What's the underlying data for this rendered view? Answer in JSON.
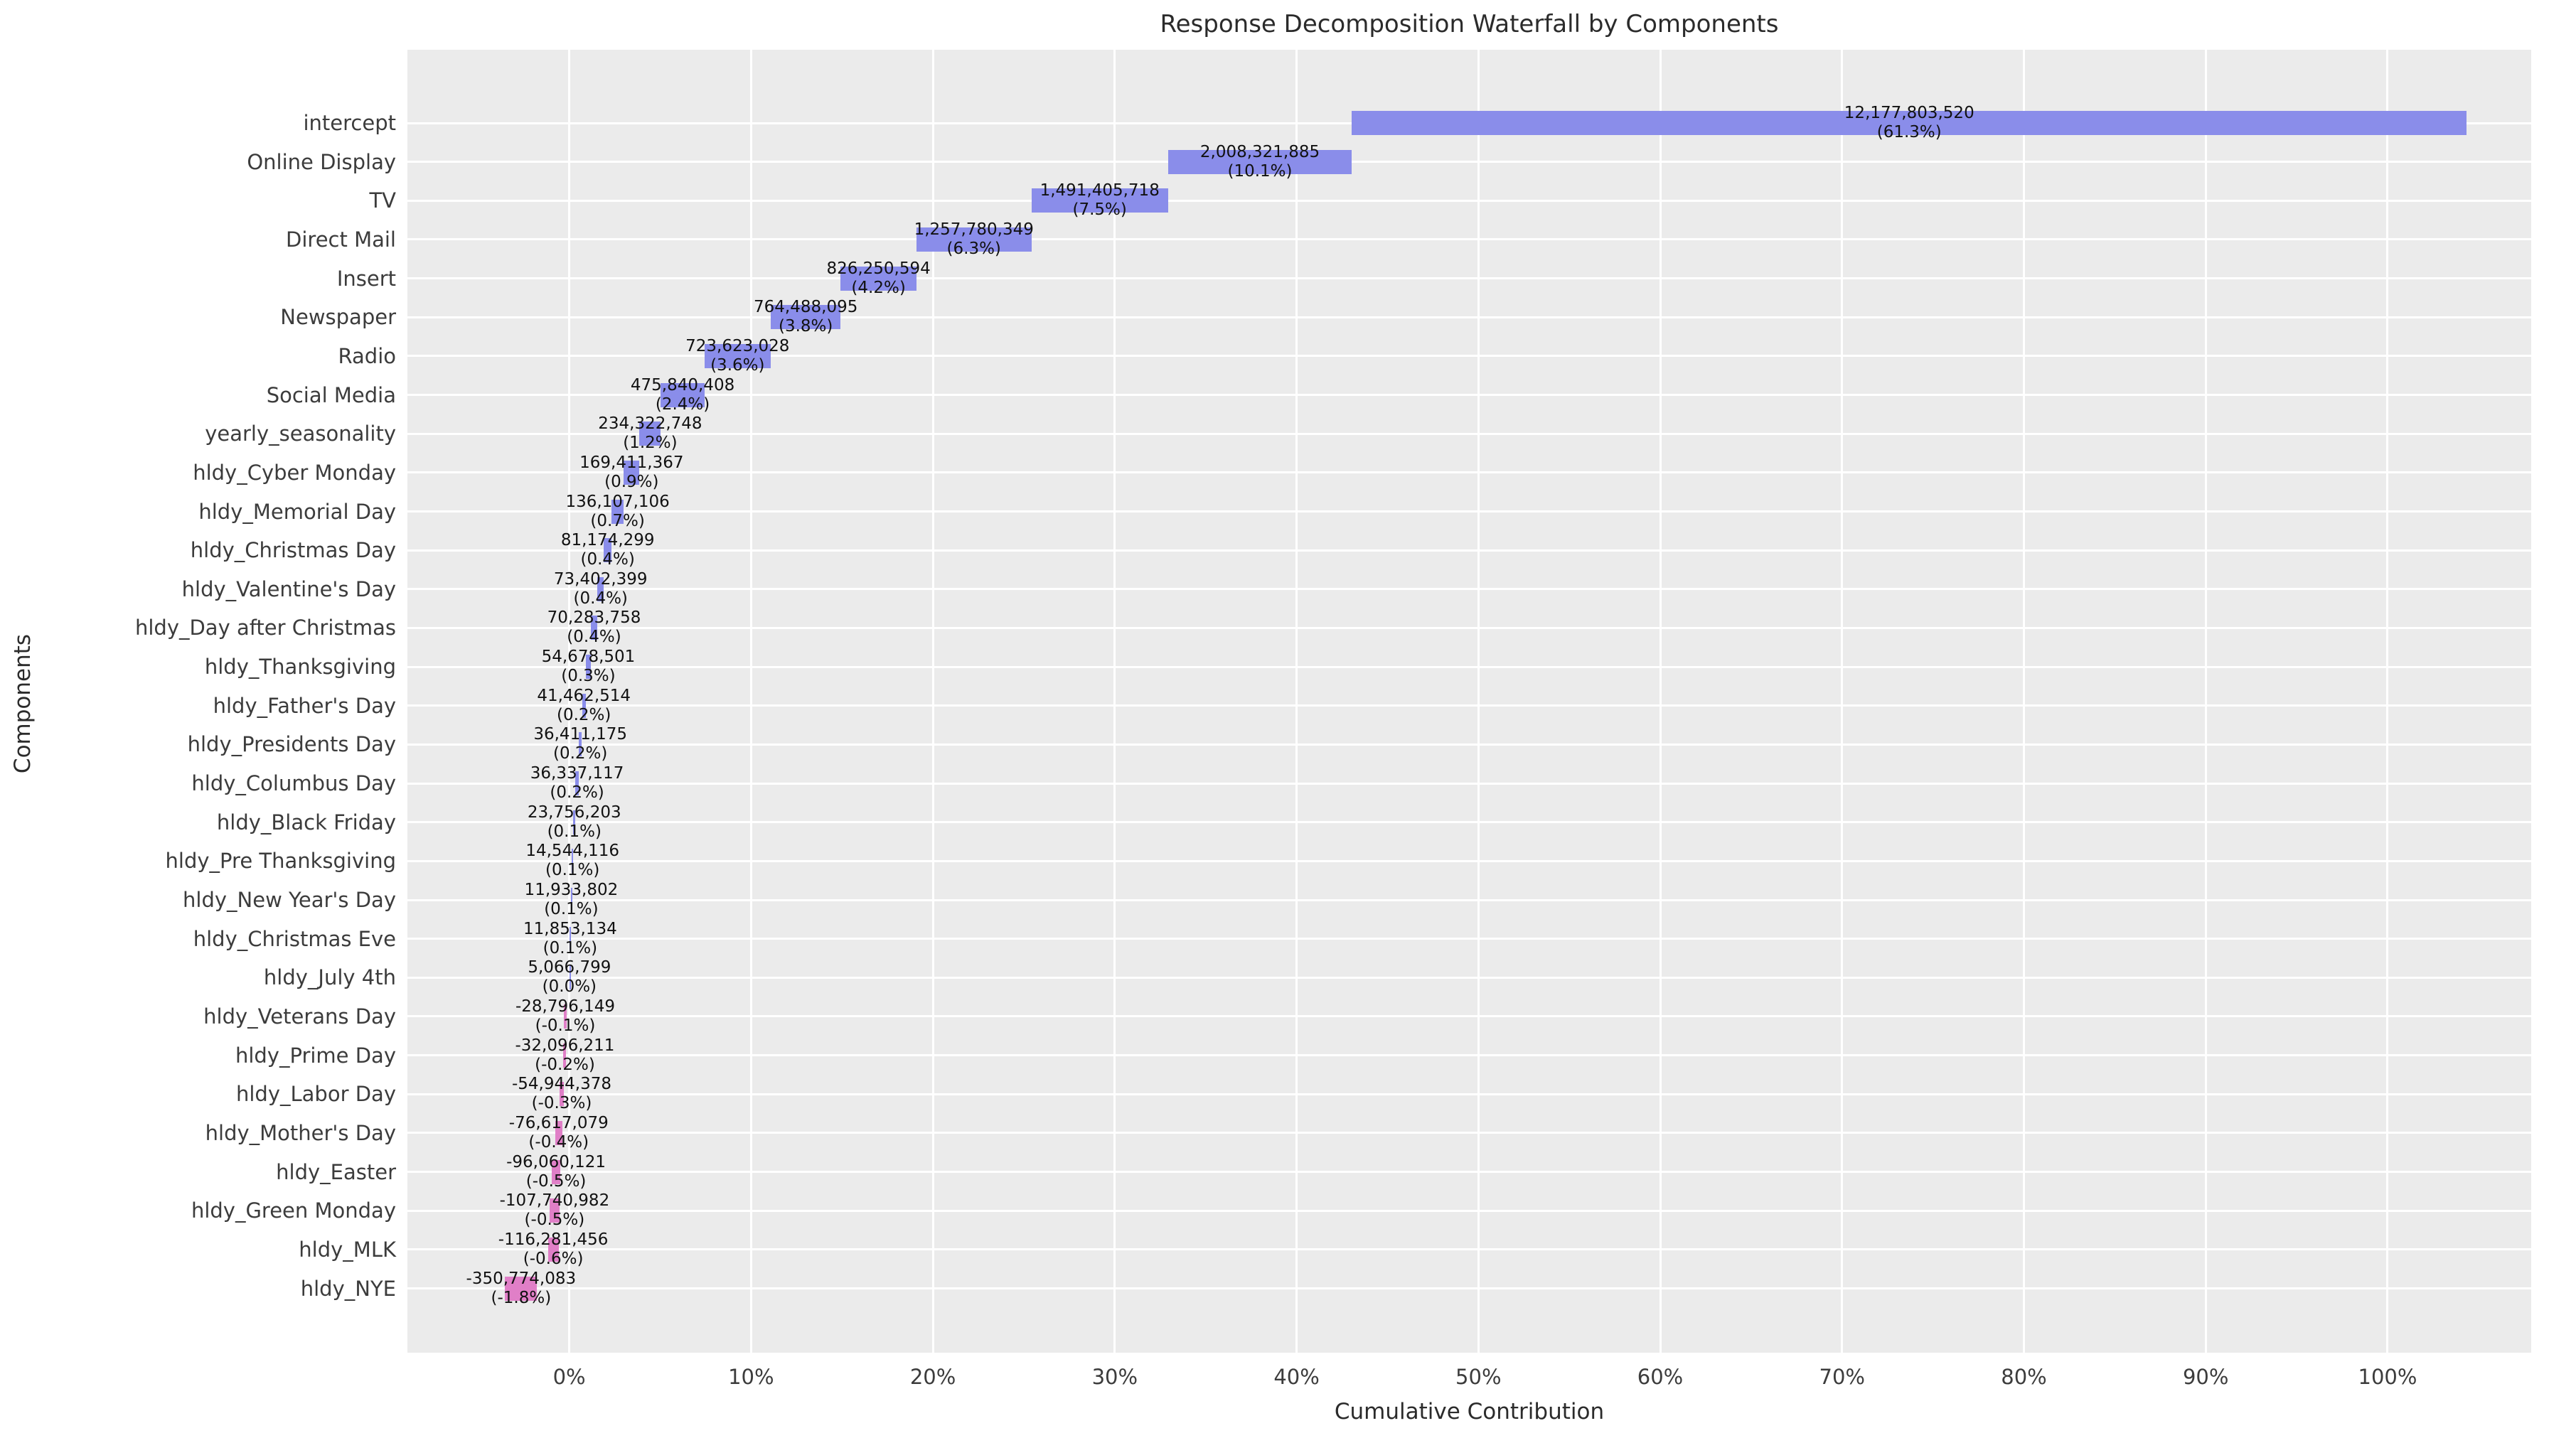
{
  "chart_data": {
    "type": "bar",
    "variant": "horizontal-waterfall",
    "title": "Response Decomposition Waterfall by Components",
    "xlabel": "Cumulative Contribution",
    "ylabel": "Components",
    "legend": null,
    "grid": true,
    "xlim": [
      -8.9,
      107.9
    ],
    "x_ticks": [
      {
        "label": "0%",
        "value": 0
      },
      {
        "label": "10%",
        "value": 10
      },
      {
        "label": "20%",
        "value": 20
      },
      {
        "label": "30%",
        "value": 30
      },
      {
        "label": "40%",
        "value": 40
      },
      {
        "label": "50%",
        "value": 50
      },
      {
        "label": "60%",
        "value": 60
      },
      {
        "label": "70%",
        "value": 70
      },
      {
        "label": "80%",
        "value": 80
      },
      {
        "label": "90%",
        "value": 90
      },
      {
        "label": "100%",
        "value": 100
      }
    ],
    "components": [
      {
        "label": "intercept",
        "value": 12177803520,
        "value_label": "12,177,803,520",
        "pct_label": "(61.3%)",
        "pct": 61.3,
        "bar_start": 43.04,
        "bar_end": 104.35
      },
      {
        "label": "Online Display",
        "value": 2008321885,
        "value_label": "2,008,321,885",
        "pct_label": "(10.1%)",
        "pct": 10.1,
        "bar_start": 32.93,
        "bar_end": 43.04
      },
      {
        "label": "TV",
        "value": 1491405718,
        "value_label": "1,491,405,718",
        "pct_label": "(7.5%)",
        "pct": 7.5,
        "bar_start": 25.42,
        "bar_end": 32.93
      },
      {
        "label": "Direct Mail",
        "value": 1257780349,
        "value_label": "1,257,780,349",
        "pct_label": "(6.3%)",
        "pct": 6.3,
        "bar_start": 19.09,
        "bar_end": 25.42
      },
      {
        "label": "Insert",
        "value": 826250594,
        "value_label": "826,250,594",
        "pct_label": "(4.2%)",
        "pct": 4.2,
        "bar_start": 14.93,
        "bar_end": 19.09
      },
      {
        "label": "Newspaper",
        "value": 764488095,
        "value_label": "764,488,095",
        "pct_label": "(3.8%)",
        "pct": 3.8,
        "bar_start": 11.08,
        "bar_end": 14.93
      },
      {
        "label": "Radio",
        "value": 723623028,
        "value_label": "723,623,028",
        "pct_label": "(3.6%)",
        "pct": 3.6,
        "bar_start": 7.43,
        "bar_end": 11.08
      },
      {
        "label": "Social Media",
        "value": 475840408,
        "value_label": "475,840,408",
        "pct_label": "(2.4%)",
        "pct": 2.4,
        "bar_start": 5.04,
        "bar_end": 7.43
      },
      {
        "label": "yearly_seasonality",
        "value": 234322748,
        "value_label": "234,322,748",
        "pct_label": "(1.2%)",
        "pct": 1.2,
        "bar_start": 3.86,
        "bar_end": 5.04
      },
      {
        "label": "hldy_Cyber Monday",
        "value": 169411367,
        "value_label": "169,411,367",
        "pct_label": "(0.9%)",
        "pct": 0.9,
        "bar_start": 3.0,
        "bar_end": 3.86
      },
      {
        "label": "hldy_Memorial Day",
        "value": 136107106,
        "value_label": "136,107,106",
        "pct_label": "(0.7%)",
        "pct": 0.7,
        "bar_start": 2.32,
        "bar_end": 3.0
      },
      {
        "label": "hldy_Christmas Day",
        "value": 81174299,
        "value_label": "81,174,299",
        "pct_label": "(0.4%)",
        "pct": 0.4,
        "bar_start": 1.91,
        "bar_end": 2.32
      },
      {
        "label": "hldy_Valentine's Day",
        "value": 73402399,
        "value_label": "73,402,399",
        "pct_label": "(0.4%)",
        "pct": 0.4,
        "bar_start": 1.54,
        "bar_end": 1.91
      },
      {
        "label": "hldy_Day after Christmas",
        "value": 70283758,
        "value_label": "70,283,758",
        "pct_label": "(0.4%)",
        "pct": 0.4,
        "bar_start": 1.19,
        "bar_end": 1.54
      },
      {
        "label": "hldy_Thanksgiving",
        "value": 54678501,
        "value_label": "54,678,501",
        "pct_label": "(0.3%)",
        "pct": 0.3,
        "bar_start": 0.91,
        "bar_end": 1.19
      },
      {
        "label": "hldy_Father's Day",
        "value": 41462514,
        "value_label": "41,462,514",
        "pct_label": "(0.2%)",
        "pct": 0.2,
        "bar_start": 0.7,
        "bar_end": 0.91
      },
      {
        "label": "hldy_Presidents Day",
        "value": 36411175,
        "value_label": "36,411,175",
        "pct_label": "(0.2%)",
        "pct": 0.2,
        "bar_start": 0.52,
        "bar_end": 0.7
      },
      {
        "label": "hldy_Columbus Day",
        "value": 36337117,
        "value_label": "36,337,117",
        "pct_label": "(0.2%)",
        "pct": 0.2,
        "bar_start": 0.34,
        "bar_end": 0.52
      },
      {
        "label": "hldy_Black Friday",
        "value": 23756203,
        "value_label": "23,756,203",
        "pct_label": "(0.1%)",
        "pct": 0.1,
        "bar_start": 0.22,
        "bar_end": 0.34
      },
      {
        "label": "hldy_Pre Thanksgiving",
        "value": 14544116,
        "value_label": "14,544,116",
        "pct_label": "(0.1%)",
        "pct": 0.1,
        "bar_start": 0.14,
        "bar_end": 0.22
      },
      {
        "label": "hldy_New Year's Day",
        "value": 11933802,
        "value_label": "11,933,802",
        "pct_label": "(0.1%)",
        "pct": 0.1,
        "bar_start": 0.08,
        "bar_end": 0.14
      },
      {
        "label": "hldy_Christmas Eve",
        "value": 11853134,
        "value_label": "11,853,134",
        "pct_label": "(0.1%)",
        "pct": 0.1,
        "bar_start": 0.02,
        "bar_end": 0.08
      },
      {
        "label": "hldy_July 4th",
        "value": 5066799,
        "value_label": "5,066,799",
        "pct_label": "(0.0%)",
        "pct": 0.0,
        "bar_start": 0.0,
        "bar_end": 0.02
      },
      {
        "label": "hldy_Veterans Day",
        "value": -28796149,
        "value_label": "-28,796,149",
        "pct_label": "(-0.1%)",
        "pct": -0.1,
        "bar_start": -0.29,
        "bar_end": -0.15
      },
      {
        "label": "hldy_Prime Day",
        "value": -32096211,
        "value_label": "-32,096,211",
        "pct_label": "(-0.2%)",
        "pct": -0.2,
        "bar_start": -0.32,
        "bar_end": -0.16
      },
      {
        "label": "hldy_Labor Day",
        "value": -54944378,
        "value_label": "-54,944,378",
        "pct_label": "(-0.3%)",
        "pct": -0.3,
        "bar_start": -0.55,
        "bar_end": -0.28
      },
      {
        "label": "hldy_Mother's Day",
        "value": -76617079,
        "value_label": "-76,617,079",
        "pct_label": "(-0.4%)",
        "pct": -0.4,
        "bar_start": -0.77,
        "bar_end": -0.39
      },
      {
        "label": "hldy_Easter",
        "value": -96060121,
        "value_label": "-96,060,121",
        "pct_label": "(-0.5%)",
        "pct": -0.5,
        "bar_start": -0.97,
        "bar_end": -0.48
      },
      {
        "label": "hldy_Green Monday",
        "value": -107740982,
        "value_label": "-107,740,982",
        "pct_label": "(-0.5%)",
        "pct": -0.5,
        "bar_start": -1.08,
        "bar_end": -0.54
      },
      {
        "label": "hldy_MLK",
        "value": -116281456,
        "value_label": "-116,281,456",
        "pct_label": "(-0.6%)",
        "pct": -0.6,
        "bar_start": -1.17,
        "bar_end": -0.59
      },
      {
        "label": "hldy_NYE",
        "value": -350774083,
        "value_label": "-350,774,083",
        "pct_label": "(-1.8%)",
        "pct": -1.8,
        "bar_start": -3.53,
        "bar_end": -1.77
      }
    ],
    "colors": {
      "positive_bar": "#8A8DEA",
      "negative_bar": "#E07FC7",
      "plot_background": "#EBEBEB",
      "grid": "#FFFFFF",
      "figure_background": "#FFFFFF",
      "title_text": "#2B2B2B",
      "tick_text": "#3C3C3C",
      "value_text": "#111111"
    }
  }
}
